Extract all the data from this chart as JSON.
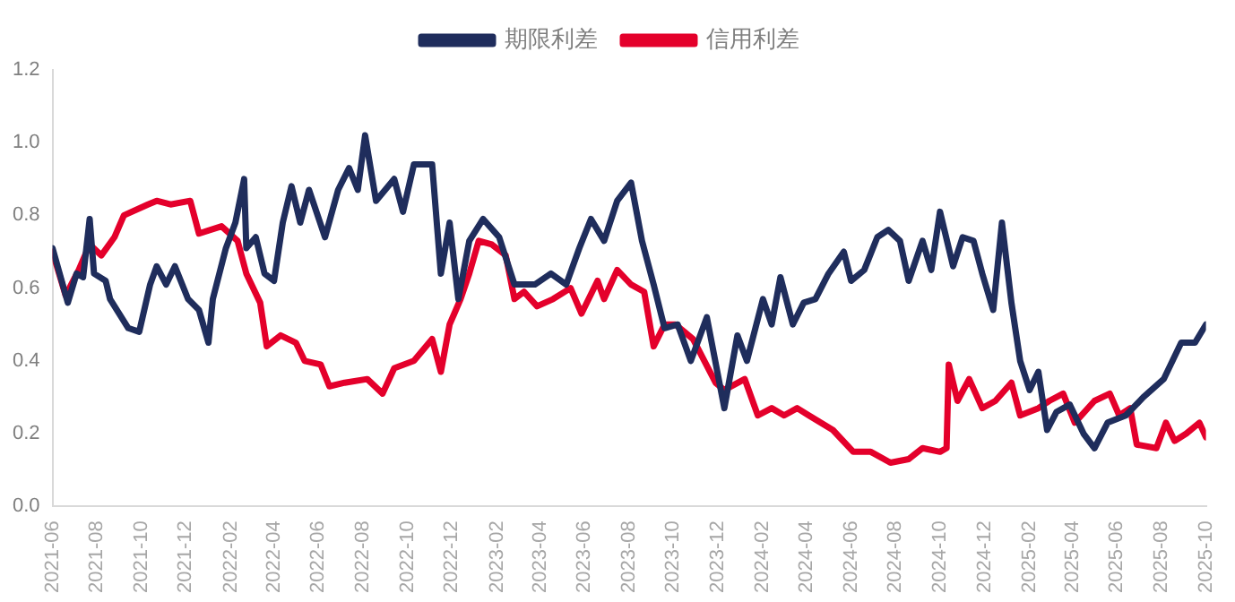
{
  "chart_data": {
    "type": "line",
    "xlim": [
      "2021-06",
      "2025-10"
    ],
    "xticks": [
      "2021-06",
      "2021-08",
      "2021-10",
      "2021-12",
      "2022-02",
      "2022-04",
      "2022-06",
      "2022-08",
      "2022-10",
      "2022-12",
      "2023-02",
      "2023-04",
      "2023-06",
      "2023-08",
      "2023-10",
      "2023-12",
      "2024-02",
      "2024-04",
      "2024-06",
      "2024-08",
      "2024-10",
      "2024-12",
      "2025-02",
      "2025-04",
      "2025-06",
      "2025-08",
      "2025-10"
    ],
    "ylim": [
      0,
      1.2
    ],
    "yticks": [
      {
        "value": 0,
        "label": "0.0"
      },
      0.2,
      0.4,
      0.6,
      0.8,
      {
        "value": 1,
        "label": "1.0"
      },
      1.2
    ],
    "grid": false,
    "legend": "top",
    "marker": "none",
    "line_style": "solid",
    "series": [
      {
        "name": "期限利差",
        "color": "#1f2d5c",
        "x": [
          "2021-06-01",
          "2021-06-22",
          "2021-07-04",
          "2021-07-13",
          "2021-07-22",
          "2021-07-28",
          "2021-08-13",
          "2021-08-19",
          "2021-09-13",
          "2021-09-28",
          "2021-10-13",
          "2021-10-22",
          "2021-11-04",
          "2021-11-16",
          "2021-12-04",
          "2021-12-19",
          "2022-01-01",
          "2022-01-07",
          "2022-01-25",
          "2022-02-07",
          "2022-02-19",
          "2022-02-22",
          "2022-03-07",
          "2022-03-19",
          "2022-04-01",
          "2022-04-13",
          "2022-04-25",
          "2022-05-07",
          "2022-05-19",
          "2022-06-10",
          "2022-06-28",
          "2022-07-13",
          "2022-07-25",
          "2022-08-04",
          "2022-08-19",
          "2022-09-13",
          "2022-09-25",
          "2022-10-10",
          "2022-11-04",
          "2022-11-16",
          "2022-11-28",
          "2022-12-10",
          "2022-12-25",
          "2023-01-13",
          "2023-02-04",
          "2023-02-25",
          "2023-03-25",
          "2023-04-16",
          "2023-05-07",
          "2023-05-25",
          "2023-06-10",
          "2023-06-28",
          "2023-07-16",
          "2023-08-04",
          "2023-08-19",
          "2023-09-04",
          "2023-09-19",
          "2023-10-07",
          "2023-10-25",
          "2023-11-16",
          "2023-12-10",
          "2023-12-28",
          "2024-01-10",
          "2024-02-01",
          "2024-02-13",
          "2024-02-25",
          "2024-03-13",
          "2024-03-28",
          "2024-04-13",
          "2024-05-01",
          "2024-05-22",
          "2024-06-01",
          "2024-06-19",
          "2024-07-07",
          "2024-07-22",
          "2024-08-07",
          "2024-08-19",
          "2024-09-07",
          "2024-09-19",
          "2024-10-01",
          "2024-10-19",
          "2024-11-01",
          "2024-11-16",
          "2024-11-28",
          "2024-12-13",
          "2024-12-25",
          "2025-01-07",
          "2025-01-19",
          "2025-02-01",
          "2025-02-13",
          "2025-02-25",
          "2025-03-10",
          "2025-03-28",
          "2025-04-16",
          "2025-05-01",
          "2025-05-19",
          "2025-06-13",
          "2025-07-07",
          "2025-08-04",
          "2025-08-28",
          "2025-09-16",
          "2025-10-01"
        ],
        "values": [
          0.71,
          0.56,
          0.64,
          0.63,
          0.79,
          0.64,
          0.62,
          0.57,
          0.49,
          0.48,
          0.61,
          0.66,
          0.61,
          0.66,
          0.57,
          0.54,
          0.45,
          0.57,
          0.71,
          0.78,
          0.9,
          0.71,
          0.74,
          0.64,
          0.62,
          0.78,
          0.88,
          0.78,
          0.87,
          0.74,
          0.87,
          0.93,
          0.87,
          1.02,
          0.84,
          0.9,
          0.81,
          0.94,
          0.94,
          0.64,
          0.78,
          0.57,
          0.73,
          0.79,
          0.74,
          0.61,
          0.61,
          0.64,
          0.61,
          0.71,
          0.79,
          0.73,
          0.84,
          0.89,
          0.73,
          0.61,
          0.49,
          0.5,
          0.4,
          0.52,
          0.27,
          0.47,
          0.4,
          0.57,
          0.5,
          0.63,
          0.5,
          0.56,
          0.57,
          0.64,
          0.7,
          0.62,
          0.65,
          0.74,
          0.76,
          0.73,
          0.62,
          0.73,
          0.65,
          0.81,
          0.66,
          0.74,
          0.73,
          0.64,
          0.54,
          0.78,
          0.56,
          0.4,
          0.32,
          0.37,
          0.21,
          0.26,
          0.28,
          0.2,
          0.16,
          0.23,
          0.25,
          0.3,
          0.35,
          0.45,
          0.45,
          0.5
        ]
      },
      {
        "name": "信用利差",
        "color": "#e4002b",
        "x": [
          "2021-06-01",
          "2021-06-19",
          "2021-07-07",
          "2021-07-22",
          "2021-08-07",
          "2021-08-25",
          "2021-09-07",
          "2021-10-10",
          "2021-10-22",
          "2021-11-10",
          "2021-12-07",
          "2021-12-19",
          "2022-01-19",
          "2022-02-10",
          "2022-02-22",
          "2022-03-13",
          "2022-03-22",
          "2022-04-10",
          "2022-05-01",
          "2022-05-13",
          "2022-06-04",
          "2022-06-16",
          "2022-07-07",
          "2022-08-07",
          "2022-08-28",
          "2022-09-13",
          "2022-10-10",
          "2022-11-04",
          "2022-11-16",
          "2022-11-28",
          "2022-12-13",
          "2022-12-25",
          "2023-01-07",
          "2023-01-25",
          "2023-02-13",
          "2023-02-25",
          "2023-03-10",
          "2023-03-28",
          "2023-04-19",
          "2023-05-13",
          "2023-05-28",
          "2023-06-19",
          "2023-06-28",
          "2023-07-16",
          "2023-08-04",
          "2023-08-22",
          "2023-09-04",
          "2023-09-19",
          "2023-10-04",
          "2023-10-28",
          "2023-11-28",
          "2023-12-10",
          "2024-01-07",
          "2024-01-25",
          "2024-02-13",
          "2024-03-01",
          "2024-03-19",
          "2024-04-04",
          "2024-05-07",
          "2024-06-04",
          "2024-06-28",
          "2024-07-25",
          "2024-08-19",
          "2024-09-07",
          "2024-10-01",
          "2024-10-10",
          "2024-10-13",
          "2024-10-25",
          "2024-11-10",
          "2024-11-28",
          "2024-12-16",
          "2025-01-07",
          "2025-01-19",
          "2025-02-13",
          "2025-02-28",
          "2025-03-19",
          "2025-04-04",
          "2025-05-01",
          "2025-05-22",
          "2025-06-04",
          "2025-06-19",
          "2025-06-28",
          "2025-07-25",
          "2025-08-07",
          "2025-08-19",
          "2025-09-04",
          "2025-09-22",
          "2025-10-01"
        ],
        "values": [
          0.7,
          0.58,
          0.65,
          0.72,
          0.69,
          0.74,
          0.8,
          0.83,
          0.84,
          0.83,
          0.84,
          0.75,
          0.77,
          0.73,
          0.64,
          0.56,
          0.44,
          0.47,
          0.45,
          0.4,
          0.39,
          0.33,
          0.34,
          0.35,
          0.31,
          0.38,
          0.4,
          0.46,
          0.37,
          0.5,
          0.57,
          0.64,
          0.73,
          0.72,
          0.69,
          0.57,
          0.59,
          0.55,
          0.57,
          0.6,
          0.53,
          0.62,
          0.57,
          0.65,
          0.61,
          0.59,
          0.44,
          0.5,
          0.5,
          0.46,
          0.34,
          0.32,
          0.35,
          0.25,
          0.27,
          0.25,
          0.27,
          0.25,
          0.21,
          0.15,
          0.15,
          0.12,
          0.13,
          0.16,
          0.15,
          0.16,
          0.39,
          0.29,
          0.35,
          0.27,
          0.29,
          0.34,
          0.25,
          0.27,
          0.29,
          0.31,
          0.23,
          0.29,
          0.31,
          0.25,
          0.27,
          0.17,
          0.16,
          0.23,
          0.18,
          0.2,
          0.23,
          0.19
        ]
      }
    ]
  }
}
